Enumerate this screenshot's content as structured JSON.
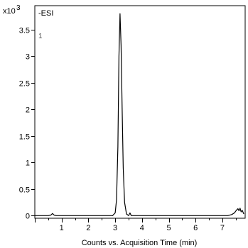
{
  "chart_data": {
    "type": "line",
    "multiplier_label": "x10",
    "multiplier_exponent": "3",
    "ion_mode_label": "-ESI",
    "trace_label": "1",
    "xlabel": "Counts vs. Acquisition Time (min)",
    "ylabel": "",
    "xlim": [
      0,
      7.85
    ],
    "ylim": [
      -0.05,
      3.95
    ],
    "x_ticks": [
      1,
      2,
      3,
      4,
      5,
      6,
      7
    ],
    "y_ticks": [
      0,
      0.5,
      1,
      1.5,
      2,
      2.5,
      3,
      3.5
    ],
    "y_tick_labels": [
      "0",
      "0.5",
      "1",
      "1.5",
      "2",
      "2.5",
      "3",
      "3.5"
    ],
    "series": [
      {
        "color": "#000000",
        "x": [
          0.0,
          0.5,
          0.6,
          0.66,
          0.72,
          0.8,
          1.5,
          2.5,
          2.9,
          3.0,
          3.05,
          3.1,
          3.14,
          3.18,
          3.22,
          3.26,
          3.3,
          3.35,
          3.42,
          3.5,
          3.55,
          3.6,
          3.7,
          5.0,
          7.2,
          7.35,
          7.45,
          7.52,
          7.58,
          7.62,
          7.66,
          7.7,
          7.74,
          7.8
        ],
        "y": [
          0.0,
          0.0,
          0.01,
          0.04,
          0.01,
          0.0,
          0.0,
          0.0,
          0.0,
          0.05,
          0.3,
          1.3,
          3.0,
          3.8,
          3.2,
          2.0,
          0.9,
          0.25,
          0.03,
          0.0,
          0.05,
          0.0,
          0.0,
          0.0,
          0.0,
          0.02,
          0.05,
          0.1,
          0.13,
          0.09,
          0.14,
          0.07,
          0.1,
          0.03
        ]
      }
    ]
  }
}
